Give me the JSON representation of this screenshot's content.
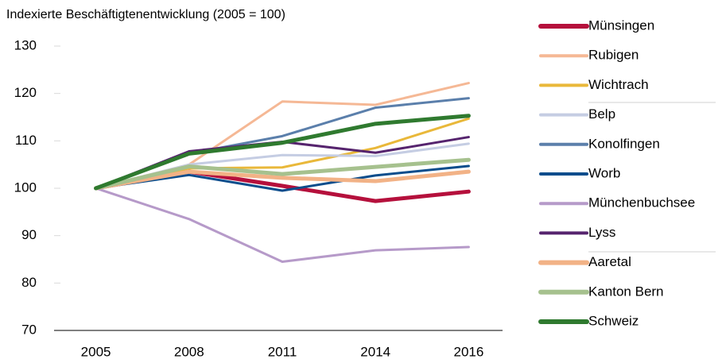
{
  "chart_data": {
    "type": "line",
    "title": "Indexierte Beschäftigtenentwicklung (2005 = 100)",
    "categories": [
      "2005",
      "2008",
      "2011",
      "2014",
      "2016"
    ],
    "ylim": [
      70,
      130
    ],
    "yticks": [
      70,
      80,
      90,
      100,
      110,
      120,
      130
    ],
    "series": [
      {
        "name": "Münsingen",
        "color": "#b5103c",
        "width": 5,
        "values": [
          100,
          103.5,
          100.5,
          97.3,
          99.3
        ]
      },
      {
        "name": "Rubigen",
        "color": "#f5b895",
        "width": 3,
        "values": [
          100,
          105,
          118.3,
          117.6,
          122.2
        ]
      },
      {
        "name": "Wichtrach",
        "color": "#e9b83a",
        "width": 3,
        "values": [
          100,
          104.2,
          104.4,
          108.5,
          114.7
        ]
      },
      {
        "name": "Belp",
        "color": "#c5cde3",
        "width": 3,
        "values": [
          100,
          105,
          107,
          106.8,
          109.4
        ]
      },
      {
        "name": "Konolfingen",
        "color": "#5b7fab",
        "width": 3,
        "values": [
          100,
          107.3,
          111,
          117,
          119
        ]
      },
      {
        "name": "Worb",
        "color": "#0b4d8c",
        "width": 3,
        "values": [
          100,
          102.8,
          99.5,
          102.7,
          104.7
        ]
      },
      {
        "name": "Münchenbuchsee",
        "color": "#b69ac9",
        "width": 3,
        "values": [
          100,
          93.5,
          84.5,
          86.9,
          87.6
        ]
      },
      {
        "name": "Lyss",
        "color": "#56246e",
        "width": 3,
        "values": [
          100,
          107.8,
          109.8,
          107.5,
          110.8
        ]
      },
      {
        "name": "Aaretal",
        "color": "#f2b286",
        "width": 5,
        "values": [
          100,
          103.5,
          102.2,
          101.5,
          103.5
        ]
      },
      {
        "name": "Kanton Bern",
        "color": "#a6c18e",
        "width": 5,
        "values": [
          100,
          104.6,
          103,
          104.5,
          106
        ]
      },
      {
        "name": "Schweiz",
        "color": "#2f7a2f",
        "width": 5,
        "values": [
          100,
          107.3,
          109.6,
          113.6,
          115.3
        ]
      }
    ]
  }
}
